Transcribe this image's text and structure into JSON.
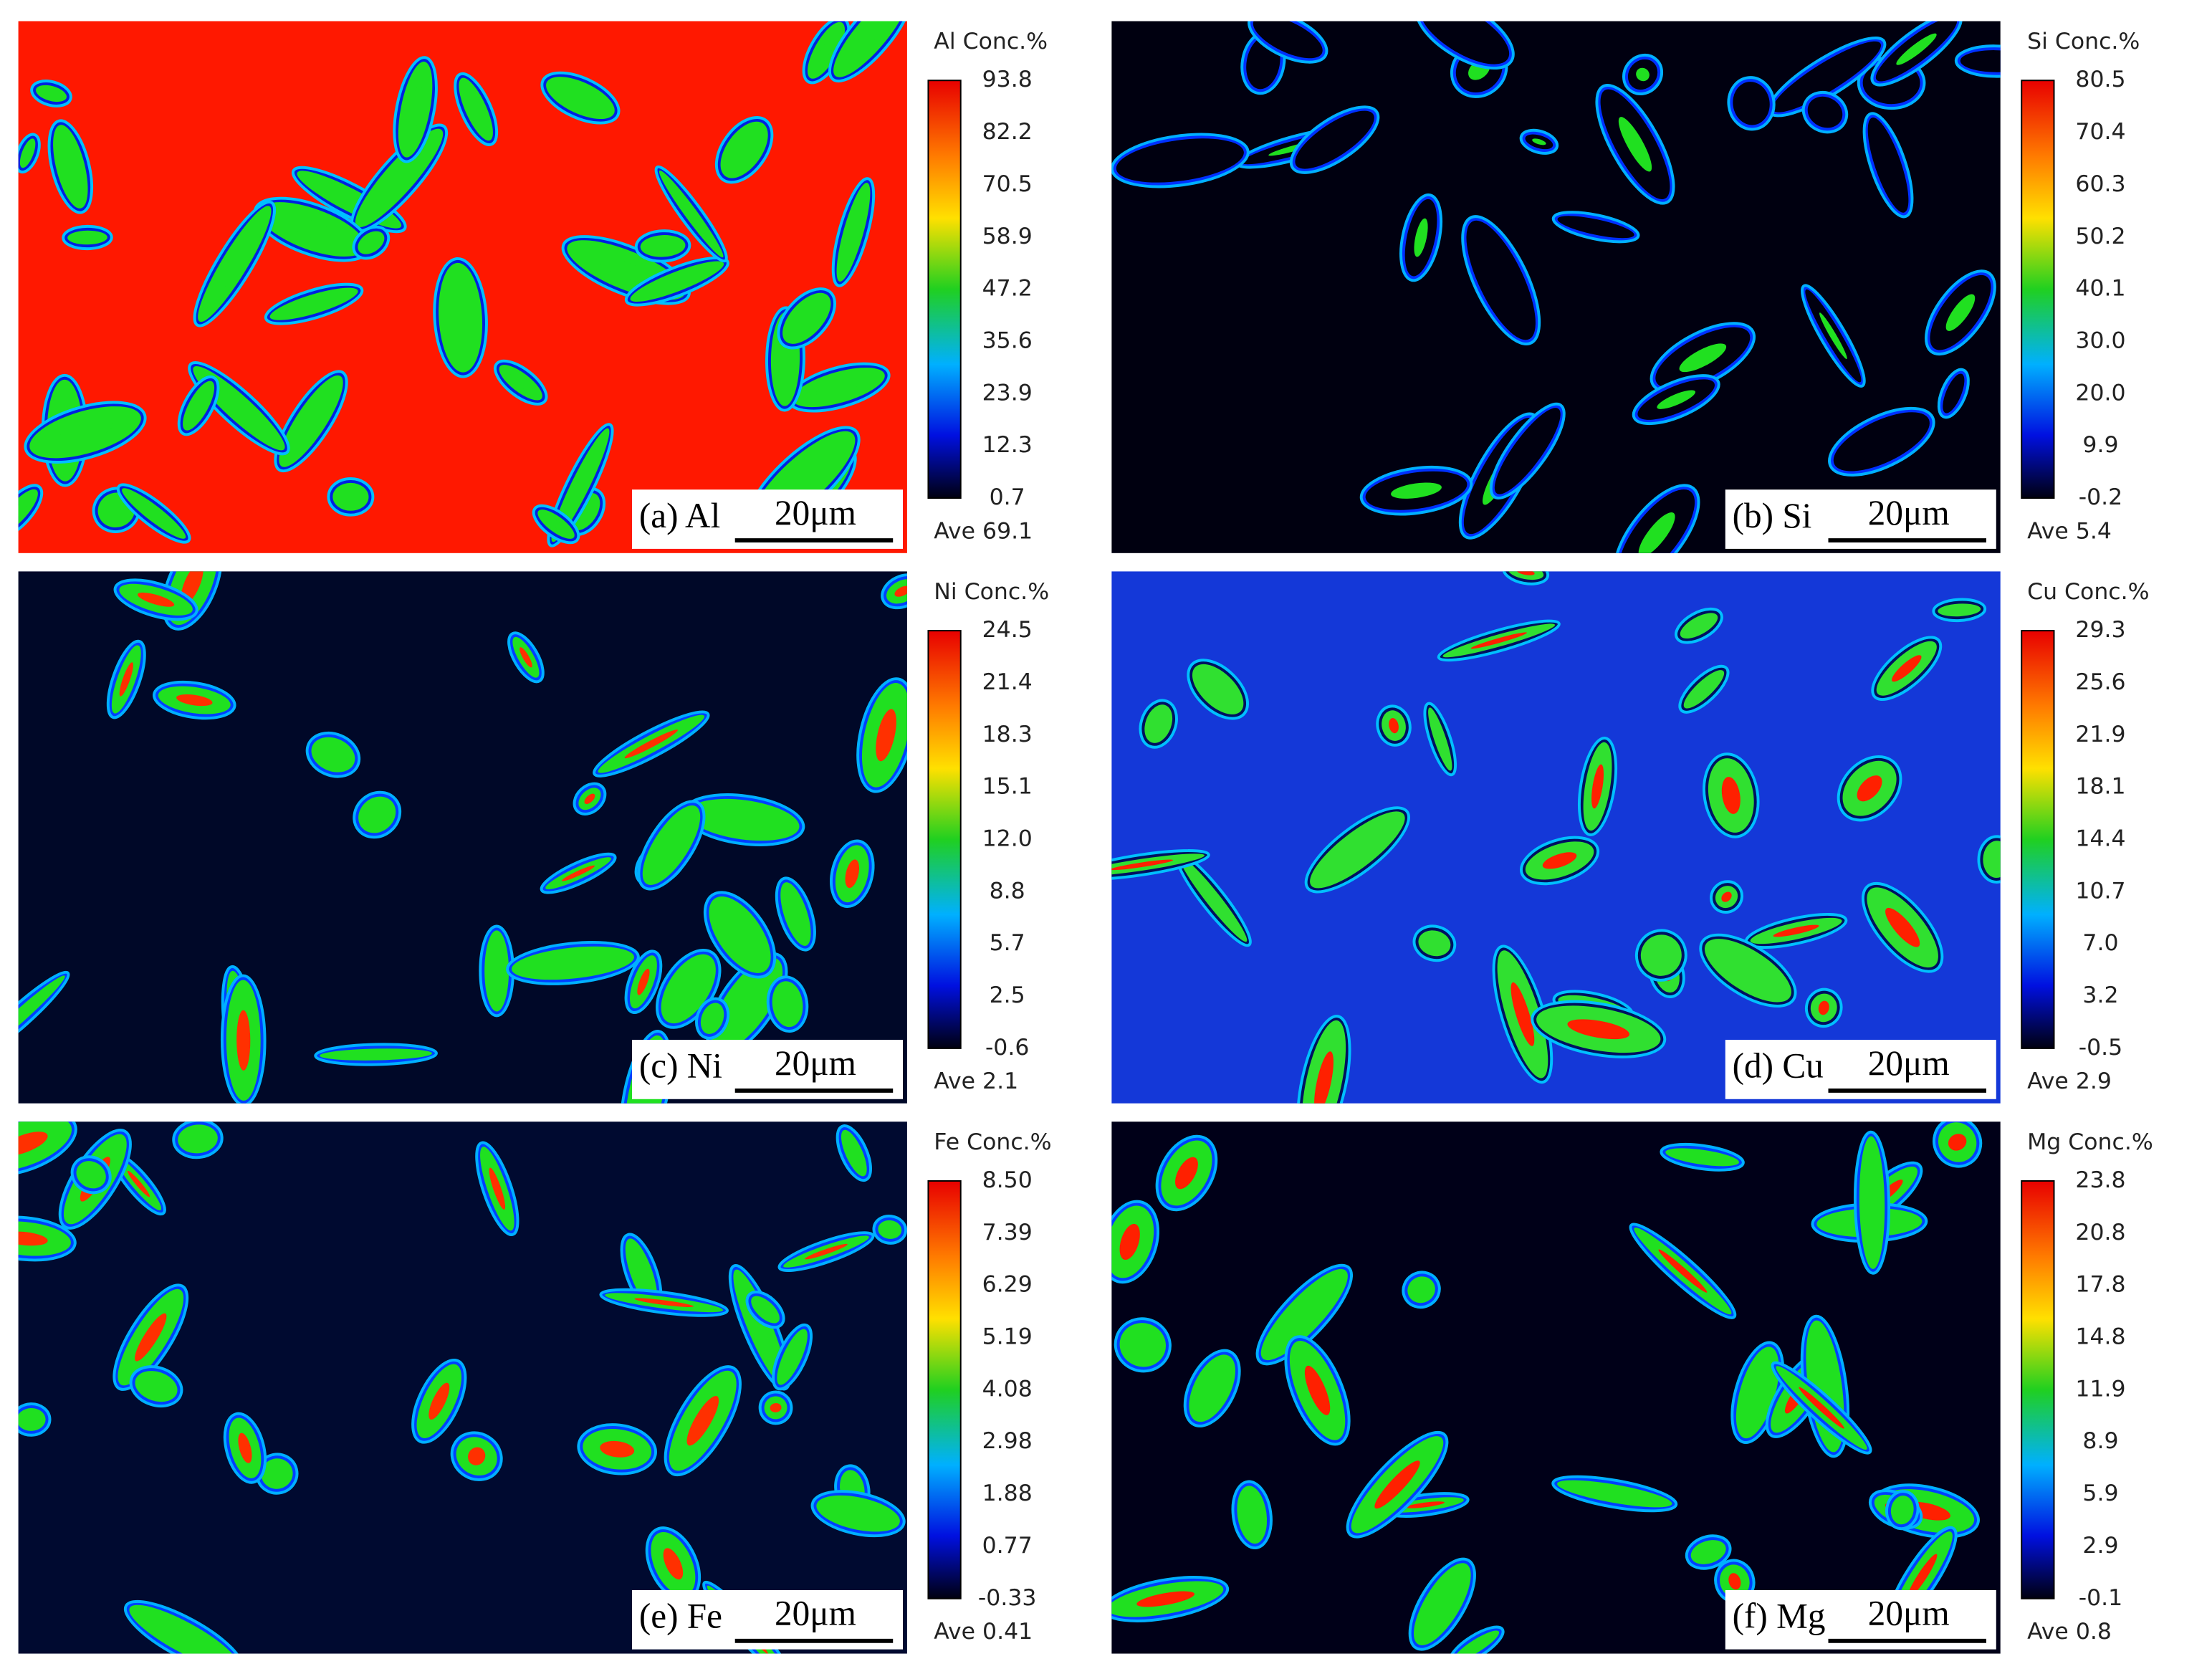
{
  "panels": [
    {
      "caption": "(a) Al",
      "scale": "20μm",
      "colorbar": {
        "title": "Al Conc.%",
        "ticks": [
          "93.8",
          "82.2",
          "70.5",
          "58.9",
          "47.2",
          "35.6",
          "23.9",
          "12.3",
          "0.7"
        ],
        "average": "Ave 69.1"
      }
    },
    {
      "caption": "(b) Si",
      "scale": "20μm",
      "colorbar": {
        "title": "Si Conc.%",
        "ticks": [
          "80.5",
          "70.4",
          "60.3",
          "50.2",
          "40.1",
          "30.0",
          "20.0",
          "9.9",
          "-0.2"
        ],
        "average": "Ave 5.4"
      }
    },
    {
      "caption": "(c) Ni",
      "scale": "20μm",
      "colorbar": {
        "title": "Ni Conc.%",
        "ticks": [
          "24.5",
          "21.4",
          "18.3",
          "15.1",
          "12.0",
          "8.8",
          "5.7",
          "2.5",
          "-0.6"
        ],
        "average": "Ave 2.1"
      }
    },
    {
      "caption": "(d) Cu",
      "scale": "20μm",
      "colorbar": {
        "title": "Cu Conc.%",
        "ticks": [
          "29.3",
          "25.6",
          "21.9",
          "18.1",
          "14.4",
          "10.7",
          "7.0",
          "3.2",
          "-0.5"
        ],
        "average": "Ave 2.9"
      }
    },
    {
      "caption": "(e) Fe",
      "scale": "20μm",
      "colorbar": {
        "title": "Fe Conc.%",
        "ticks": [
          "8.50",
          "7.39",
          "6.29",
          "5.19",
          "4.08",
          "2.98",
          "1.88",
          "0.77",
          "-0.33"
        ],
        "average": "Ave 0.41"
      }
    },
    {
      "caption": "(f) Mg",
      "scale": "20μm",
      "colorbar": {
        "title": "Mg Conc.%",
        "ticks": [
          "23.8",
          "20.8",
          "17.8",
          "14.8",
          "11.9",
          "8.9",
          "5.9",
          "2.9",
          "-0.1"
        ],
        "average": "Ave 0.8"
      }
    }
  ]
}
